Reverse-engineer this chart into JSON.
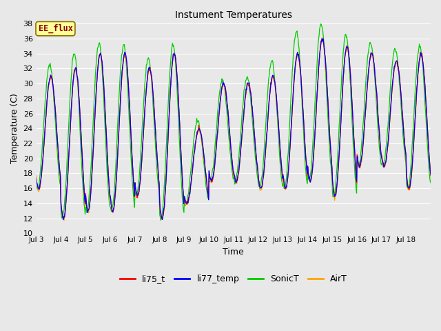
{
  "title": "Instument Temperatures",
  "xlabel": "Time",
  "ylabel": "Temperature (C)",
  "ylim": [
    10,
    38
  ],
  "yticks": [
    10,
    12,
    14,
    16,
    18,
    20,
    22,
    24,
    26,
    28,
    30,
    32,
    34,
    36,
    38
  ],
  "xtick_labels": [
    "Jul 3",
    "Jul 4",
    "Jul 5",
    "Jul 6",
    "Jul 7",
    "Jul 8",
    "Jul 9",
    "Jul 10",
    "Jul 11",
    "Jul 12",
    "Jul 13",
    "Jul 14",
    "Jul 15",
    "Jul 16",
    "Jul 17",
    "Jul 18"
  ],
  "annotation_text": "EE_flux",
  "annotation_color": "#8B0000",
  "annotation_bg": "#FFFF99",
  "bg_color": "#E8E8E8",
  "plot_bg_color": "#E8E8E8",
  "grid_color": "white",
  "colors": {
    "li75_t": "red",
    "li77_temp": "blue",
    "SonicT": "#00CC00",
    "AirT": "orange"
  },
  "legend_labels": [
    "li75_t",
    "li77_temp",
    "SonicT",
    "AirT"
  ],
  "legend_colors": [
    "red",
    "blue",
    "#00CC00",
    "orange"
  ],
  "day_peaks": [
    31,
    32,
    34,
    34,
    32,
    34,
    24,
    30,
    30,
    31,
    34,
    36,
    35,
    34,
    33,
    34
  ],
  "day_troughs": [
    16,
    12,
    13,
    13,
    15,
    12,
    14,
    17,
    17,
    16,
    16,
    17,
    15,
    19,
    19,
    16
  ],
  "sonic_extra_peak": [
    1.5,
    2.0,
    1.5,
    1.2,
    1.5,
    1.2,
    1.0,
    0.5,
    0.8,
    2.0,
    3.0,
    2.0,
    1.5,
    1.5,
    1.5,
    1.0
  ],
  "pts_per_day": 48,
  "n_days": 16
}
